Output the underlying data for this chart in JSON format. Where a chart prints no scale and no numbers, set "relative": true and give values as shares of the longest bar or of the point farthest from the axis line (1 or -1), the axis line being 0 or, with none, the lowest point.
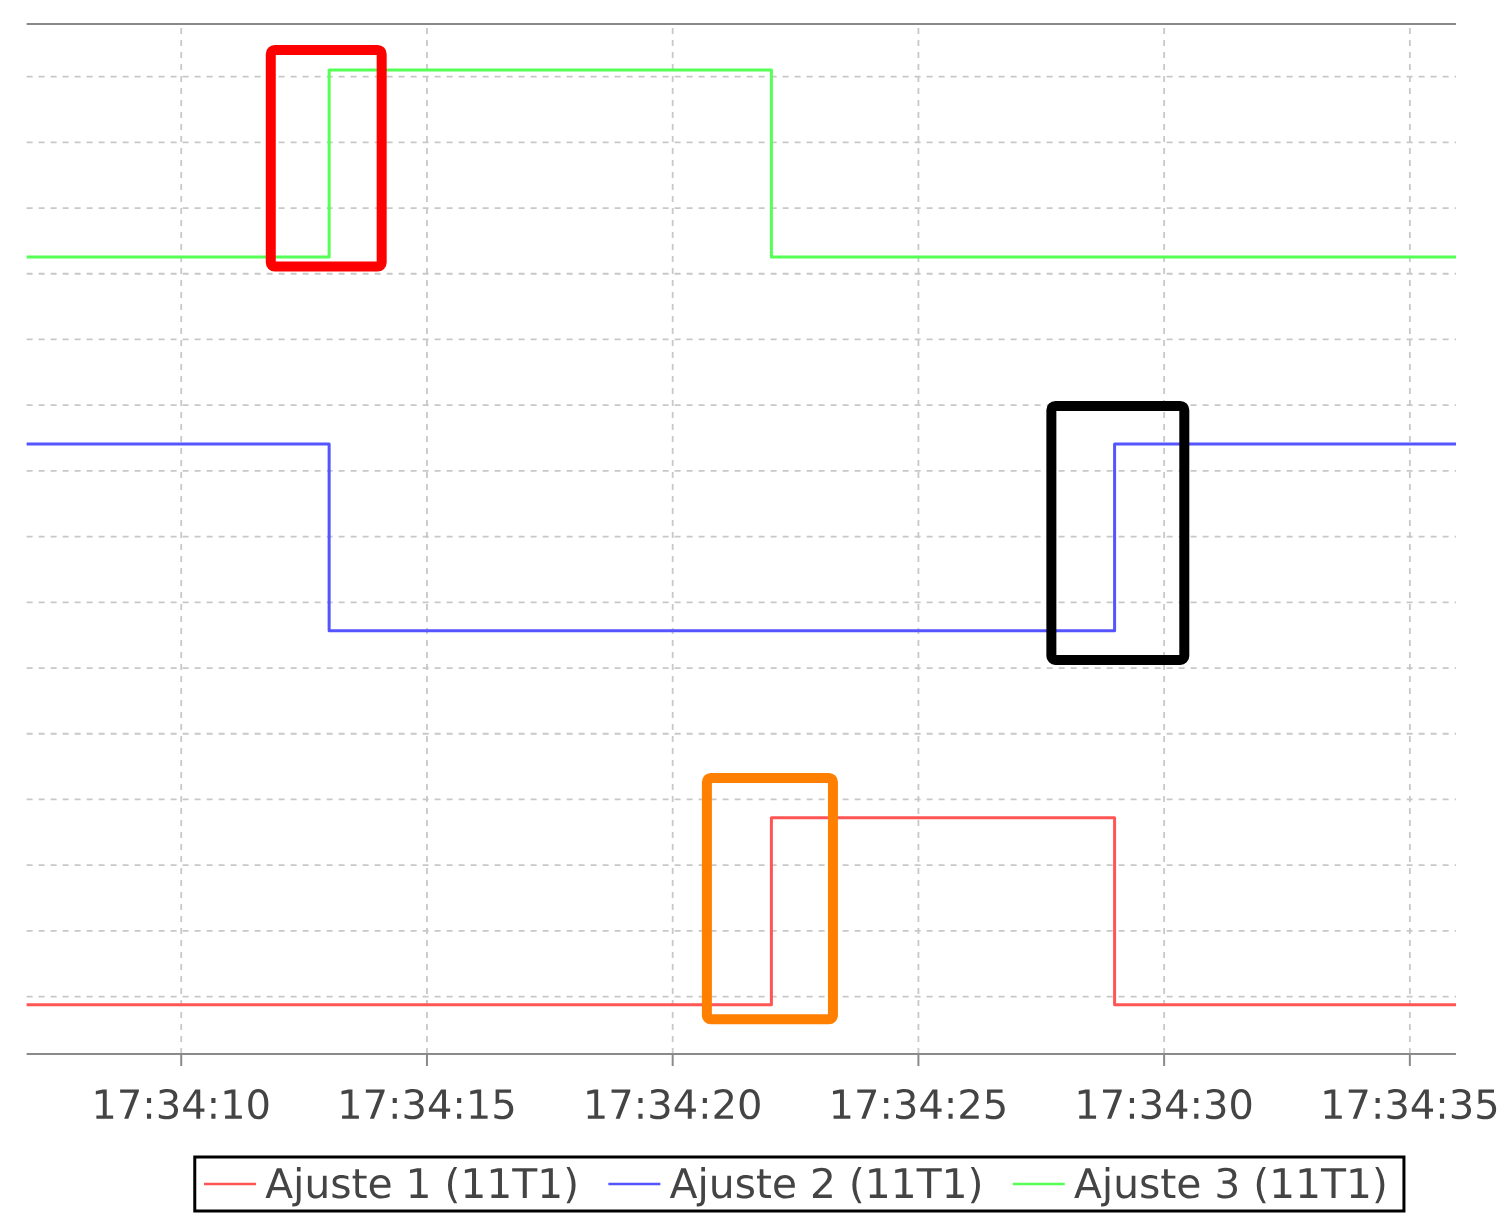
{
  "chart_data": {
    "type": "step",
    "relative": true,
    "x": [
      17.56857,
      17.57028,
      17.57278,
      17.57472,
      17.57665
    ],
    "xlim": [
      17.56857,
      17.57665
    ],
    "xticks": [
      {
        "value": 17.569444,
        "label": "17:34:10"
      },
      {
        "value": 17.570833,
        "label": "17:34:15"
      },
      {
        "value": 17.572222,
        "label": "17:34:20"
      },
      {
        "value": 17.573611,
        "label": "17:34:25"
      },
      {
        "value": 17.575,
        "label": "17:34:30"
      },
      {
        "value": 17.576389,
        "label": "17:34:35"
      }
    ],
    "series": [
      {
        "name": "Ajuste 1 (11T1)",
        "color": "#ff5555",
        "values": [
          0.05,
          0.05,
          0.24,
          0.05,
          0.05
        ]
      },
      {
        "name": "Ajuste 2 (11T1)",
        "color": "#5555ff",
        "values": [
          0.62,
          0.43,
          0.43,
          0.62,
          0.62
        ]
      },
      {
        "name": "Ajuste 3 (11T1)",
        "color": "#55ff55",
        "values": [
          0.81,
          1,
          0.81,
          0.81,
          0.81
        ]
      }
    ],
    "grid": true,
    "legend": "bottom"
  }
}
